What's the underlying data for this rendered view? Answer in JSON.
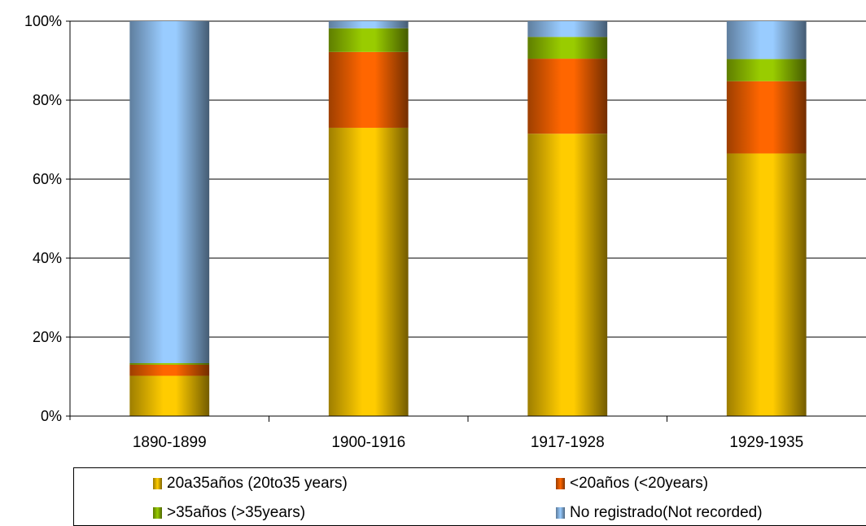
{
  "chart_data": {
    "type": "bar",
    "stacked": true,
    "categories": [
      "1890-1899",
      "1900-1916",
      "1917-1928",
      "1929-1935"
    ],
    "series": [
      {
        "name": "20a35años (20to35 years)",
        "color": "#ffcc00",
        "values": [
          10.2,
          73.0,
          71.5,
          66.5
        ]
      },
      {
        "name": "<20años (<20years)",
        "color": "#ff6600",
        "values": [
          2.8,
          19.2,
          19.0,
          18.3
        ]
      },
      {
        "name": ">35años (>35years)",
        "color": "#99cc00",
        "values": [
          0.4,
          6.0,
          5.5,
          5.6
        ]
      },
      {
        "name": "No registrado(Not recorded)",
        "color": "#99ccff",
        "values": [
          86.6,
          1.8,
          4.0,
          9.6
        ]
      }
    ],
    "yticks": [
      "0%",
      "20%",
      "40%",
      "60%",
      "80%",
      "100%"
    ],
    "ylim": [
      0,
      100
    ],
    "grid": true,
    "legend_position": "bottom",
    "title": "",
    "xlabel": "",
    "ylabel": ""
  }
}
